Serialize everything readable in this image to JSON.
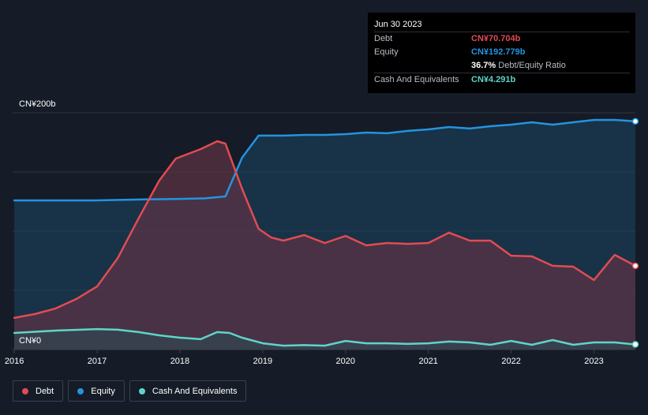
{
  "chart_data": {
    "type": "area",
    "title": "",
    "xlabel": "",
    "ylabel": "",
    "y_top_label": "CN¥200b",
    "y_bottom_label": "CN¥0",
    "ylim": [
      0,
      200
    ],
    "xlim": [
      2015.98,
      2023.5
    ],
    "x_ticks": [
      2016,
      2017,
      2018,
      2019,
      2020,
      2021,
      2022,
      2023
    ],
    "x_tick_labels": [
      "2016",
      "2017",
      "2018",
      "2019",
      "2020",
      "2021",
      "2022",
      "2023"
    ],
    "grid": true,
    "legend_position": "bottom-left",
    "series": [
      {
        "name": "Debt",
        "color": "#e24b53",
        "points": [
          [
            2016.0,
            26.7
          ],
          [
            2016.25,
            30.0
          ],
          [
            2016.5,
            34.7
          ],
          [
            2016.75,
            42.7
          ],
          [
            2017.0,
            53.3
          ],
          [
            2017.25,
            77.3
          ],
          [
            2017.5,
            110.7
          ],
          [
            2017.75,
            142.7
          ],
          [
            2017.95,
            161.3
          ],
          [
            2018.25,
            169.3
          ],
          [
            2018.45,
            176.0
          ],
          [
            2018.55,
            174.0
          ],
          [
            2018.75,
            136.0
          ],
          [
            2018.95,
            102.0
          ],
          [
            2019.1,
            94.7
          ],
          [
            2019.25,
            92.0
          ],
          [
            2019.5,
            96.7
          ],
          [
            2019.75,
            90.0
          ],
          [
            2020.0,
            96.0
          ],
          [
            2020.25,
            88.0
          ],
          [
            2020.5,
            90.0
          ],
          [
            2020.75,
            89.3
          ],
          [
            2021.0,
            90.0
          ],
          [
            2021.25,
            98.7
          ],
          [
            2021.5,
            92.0
          ],
          [
            2021.75,
            92.0
          ],
          [
            2022.0,
            79.3
          ],
          [
            2022.25,
            78.7
          ],
          [
            2022.5,
            70.7
          ],
          [
            2022.75,
            70.0
          ],
          [
            2023.0,
            58.7
          ],
          [
            2023.25,
            80.0
          ],
          [
            2023.5,
            70.7
          ]
        ]
      },
      {
        "name": "Equity",
        "color": "#2394df",
        "points": [
          [
            2016.0,
            126.0
          ],
          [
            2016.5,
            126.0
          ],
          [
            2017.0,
            126.0
          ],
          [
            2017.5,
            126.7
          ],
          [
            2018.0,
            127.3
          ],
          [
            2018.3,
            127.7
          ],
          [
            2018.55,
            129.3
          ],
          [
            2018.75,
            162.0
          ],
          [
            2018.95,
            180.7
          ],
          [
            2019.25,
            180.7
          ],
          [
            2019.5,
            181.3
          ],
          [
            2019.75,
            181.3
          ],
          [
            2020.0,
            182.0
          ],
          [
            2020.25,
            183.3
          ],
          [
            2020.5,
            182.7
          ],
          [
            2020.75,
            184.7
          ],
          [
            2021.0,
            186.0
          ],
          [
            2021.25,
            188.0
          ],
          [
            2021.5,
            186.7
          ],
          [
            2021.75,
            188.7
          ],
          [
            2022.0,
            190.0
          ],
          [
            2022.25,
            192.0
          ],
          [
            2022.5,
            190.0
          ],
          [
            2022.75,
            192.0
          ],
          [
            2023.0,
            194.0
          ],
          [
            2023.25,
            194.0
          ],
          [
            2023.5,
            192.8
          ]
        ]
      },
      {
        "name": "Cash And Equivalents",
        "color": "#5ed5c8",
        "points": [
          [
            2016.0,
            14.0
          ],
          [
            2016.5,
            16.0
          ],
          [
            2017.0,
            17.3
          ],
          [
            2017.25,
            16.7
          ],
          [
            2017.5,
            14.7
          ],
          [
            2017.75,
            12.0
          ],
          [
            2018.0,
            10.0
          ],
          [
            2018.25,
            8.7
          ],
          [
            2018.45,
            14.7
          ],
          [
            2018.6,
            14.0
          ],
          [
            2018.75,
            10.0
          ],
          [
            2019.0,
            5.3
          ],
          [
            2019.25,
            3.3
          ],
          [
            2019.5,
            3.7
          ],
          [
            2019.75,
            3.3
          ],
          [
            2020.0,
            7.3
          ],
          [
            2020.25,
            5.3
          ],
          [
            2020.5,
            5.3
          ],
          [
            2020.75,
            4.7
          ],
          [
            2021.0,
            5.3
          ],
          [
            2021.25,
            6.7
          ],
          [
            2021.5,
            6.0
          ],
          [
            2021.75,
            4.0
          ],
          [
            2022.0,
            7.3
          ],
          [
            2022.25,
            4.0
          ],
          [
            2022.5,
            8.0
          ],
          [
            2022.75,
            4.0
          ],
          [
            2023.0,
            6.0
          ],
          [
            2023.25,
            6.0
          ],
          [
            2023.5,
            4.3
          ]
        ]
      }
    ]
  },
  "tooltip": {
    "date": "Jun 30 2023",
    "debt_label": "Debt",
    "debt_value": "CN¥70.704b",
    "equity_label": "Equity",
    "equity_value": "CN¥192.779b",
    "ratio_value": "36.7%",
    "ratio_label": "Debt/Equity Ratio",
    "cash_label": "Cash And Equivalents",
    "cash_value": "CN¥4.291b"
  },
  "legend": {
    "items": [
      {
        "label": "Debt",
        "color": "#e24b53"
      },
      {
        "label": "Equity",
        "color": "#2394df"
      },
      {
        "label": "Cash And Equivalents",
        "color": "#5ed5c8"
      }
    ]
  },
  "colors": {
    "background": "#151b27",
    "grid": "#2e3440",
    "debt_fill": "#5a3344",
    "equity_fill": "#1b4565",
    "cash_fill": "#2d4a55",
    "tooltip_debt": "#e24b53",
    "tooltip_equity": "#2394df",
    "tooltip_cash": "#5ed5c8"
  }
}
